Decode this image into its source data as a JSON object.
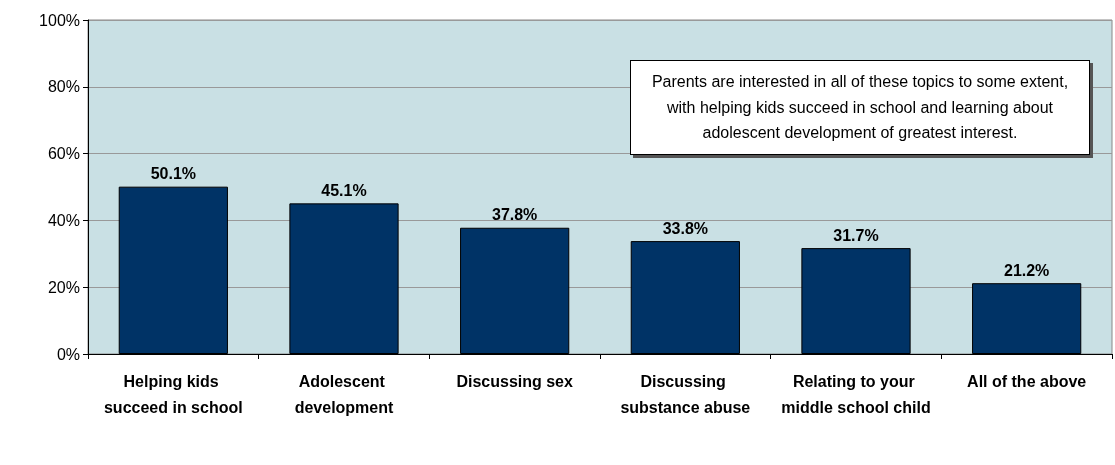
{
  "chart_data": {
    "type": "bar",
    "categories": [
      "Helping kids succeed in school",
      "Adolescent development",
      "Discussing sex",
      "Discussing substance abuse",
      "Relating to your middle school child",
      "All of the above"
    ],
    "values": [
      50.1,
      45.1,
      37.8,
      33.8,
      31.7,
      21.2
    ],
    "value_labels": [
      "50.1%",
      "45.1%",
      "37.8%",
      "33.8%",
      "31.7%",
      "21.2%"
    ],
    "color": "#003366",
    "ylim": [
      0,
      100
    ],
    "yticks": [
      {
        "value": 0,
        "label": "0%"
      },
      {
        "value": 20,
        "label": "20%"
      },
      {
        "value": 40,
        "label": "40%"
      },
      {
        "value": 60,
        "label": "60%"
      },
      {
        "value": 80,
        "label": "80%"
      },
      {
        "value": 100,
        "label": "100%"
      }
    ],
    "grid": "y",
    "annotations": [
      "Parents are interested in all of these topics to some extent, with helping kids succeed in school and learning about adolescent development of greatest interest."
    ]
  }
}
